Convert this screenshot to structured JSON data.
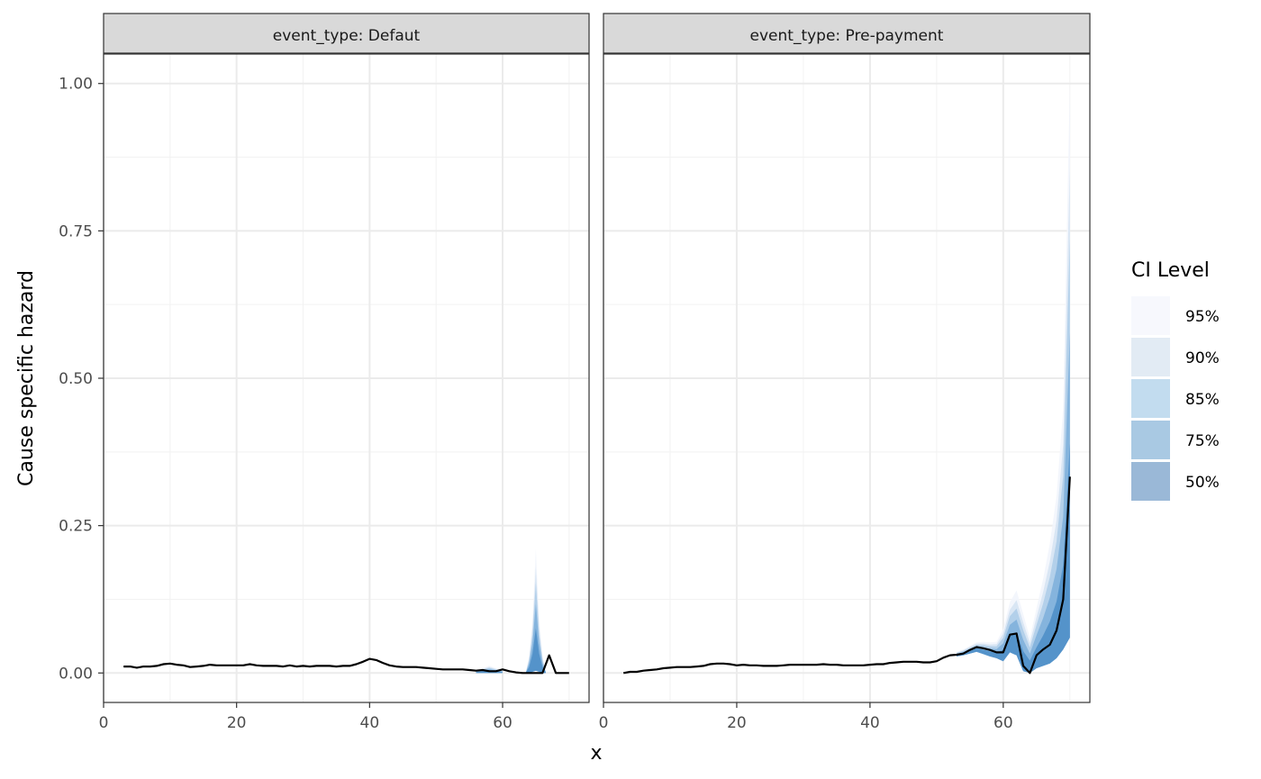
{
  "chart_data": {
    "type": "area",
    "facet_var": "event_type",
    "panels": [
      {
        "strip": "event_type: Defaut",
        "x": [
          3,
          4,
          5,
          6,
          7,
          8,
          9,
          10,
          11,
          12,
          13,
          14,
          15,
          16,
          17,
          18,
          19,
          20,
          21,
          22,
          23,
          24,
          25,
          26,
          27,
          28,
          29,
          30,
          31,
          32,
          33,
          34,
          35,
          36,
          37,
          38,
          39,
          40,
          41,
          42,
          43,
          44,
          45,
          46,
          47,
          48,
          49,
          50,
          51,
          52,
          53,
          54,
          55,
          56,
          57,
          58,
          59,
          60,
          61,
          62,
          63,
          64,
          65,
          66,
          67,
          68,
          69,
          70
        ],
        "y": [
          0.011,
          0.011,
          0.009,
          0.011,
          0.011,
          0.012,
          0.015,
          0.016,
          0.014,
          0.013,
          0.01,
          0.011,
          0.012,
          0.014,
          0.013,
          0.013,
          0.013,
          0.013,
          0.013,
          0.015,
          0.013,
          0.012,
          0.012,
          0.012,
          0.011,
          0.013,
          0.011,
          0.012,
          0.011,
          0.012,
          0.012,
          0.012,
          0.011,
          0.012,
          0.012,
          0.015,
          0.019,
          0.024,
          0.022,
          0.017,
          0.013,
          0.011,
          0.01,
          0.01,
          0.01,
          0.009,
          0.008,
          0.007,
          0.006,
          0.006,
          0.006,
          0.006,
          0.005,
          0.004,
          0.005,
          0.003,
          0.003,
          0.006,
          0.003,
          0.001,
          0.0,
          0.0,
          0.0,
          0.0,
          0.03,
          0.0,
          0.0,
          0.0
        ],
        "bands": [
          {
            "x": [
              56,
              57,
              58,
              59,
              60
            ],
            "lower": [
              0,
              0,
              0,
              0,
              0
            ],
            "upper": [
              0.004,
              0.008,
              0.012,
              0.008,
              0.004
            ]
          },
          {
            "x": [
              63.5,
              64,
              64.5,
              65,
              65.5,
              66,
              66.5
            ],
            "lower": [
              0,
              0,
              0.002,
              0.004,
              0.002,
              0,
              0
            ],
            "upper": [
              0.002,
              0.03,
              0.09,
              0.21,
              0.09,
              0.03,
              0.002
            ]
          }
        ]
      },
      {
        "strip": "event_type: Pre-payment",
        "x": [
          3,
          4,
          5,
          6,
          7,
          8,
          9,
          10,
          11,
          12,
          13,
          14,
          15,
          16,
          17,
          18,
          19,
          20,
          21,
          22,
          23,
          24,
          25,
          26,
          27,
          28,
          29,
          30,
          31,
          32,
          33,
          34,
          35,
          36,
          37,
          38,
          39,
          40,
          41,
          42,
          43,
          44,
          45,
          46,
          47,
          48,
          49,
          50,
          51,
          52,
          53,
          54,
          55,
          56,
          57,
          58,
          59,
          60,
          61,
          62,
          63,
          64,
          65,
          66,
          67,
          68,
          69,
          70
        ],
        "y": [
          0.0,
          0.002,
          0.002,
          0.004,
          0.005,
          0.006,
          0.008,
          0.009,
          0.01,
          0.01,
          0.01,
          0.011,
          0.012,
          0.015,
          0.016,
          0.016,
          0.015,
          0.013,
          0.014,
          0.013,
          0.013,
          0.012,
          0.012,
          0.012,
          0.013,
          0.014,
          0.014,
          0.014,
          0.014,
          0.014,
          0.015,
          0.014,
          0.014,
          0.013,
          0.013,
          0.013,
          0.013,
          0.014,
          0.015,
          0.015,
          0.017,
          0.018,
          0.019,
          0.019,
          0.019,
          0.018,
          0.018,
          0.02,
          0.026,
          0.03,
          0.031,
          0.033,
          0.039,
          0.044,
          0.042,
          0.039,
          0.035,
          0.035,
          0.065,
          0.067,
          0.012,
          0.0,
          0.03,
          0.04,
          0.048,
          0.072,
          0.125,
          0.333
        ],
        "bands": [
          {
            "x": [
              53,
              54,
              55,
              56,
              57,
              58,
              59,
              60,
              61,
              62,
              63,
              64,
              65,
              66,
              67,
              68,
              69,
              70
            ],
            "lower": [
              0.028,
              0.03,
              0.033,
              0.036,
              0.032,
              0.028,
              0.025,
              0.02,
              0.035,
              0.03,
              0.003,
              0.0,
              0.008,
              0.012,
              0.016,
              0.025,
              0.04,
              0.06
            ],
            "upper": [
              0.036,
              0.04,
              0.046,
              0.052,
              0.053,
              0.052,
              0.053,
              0.075,
              0.12,
              0.14,
              0.1,
              0.06,
              0.11,
              0.16,
              0.22,
              0.3,
              0.45,
              1.0
            ]
          }
        ]
      }
    ],
    "xlabel": "x",
    "ylabel": "Cause specific hazard",
    "xlim": [
      0,
      73
    ],
    "ylim": [
      -0.05,
      1.05
    ],
    "x_ticks": [
      "0",
      "20",
      "40",
      "60"
    ],
    "x_tick_values": [
      0,
      20,
      40,
      60
    ],
    "y_ticks": [
      "0.00",
      "0.25",
      "0.50",
      "0.75",
      "1.00"
    ],
    "y_tick_values": [
      0,
      0.25,
      0.5,
      0.75,
      1.0
    ],
    "grid": true,
    "legend": {
      "title": "CI Level",
      "placement": "right",
      "levels": [
        {
          "label": "95%",
          "frac": 1.0,
          "color": "#f7f8fd"
        },
        {
          "label": "90%",
          "frac": 0.85,
          "color": "#e2ebf4"
        },
        {
          "label": "85%",
          "frac": 0.72,
          "color": "#c2dcef"
        },
        {
          "label": "75%",
          "frac": 0.55,
          "color": "#a9c9e3"
        },
        {
          "label": "50%",
          "frac": 0.35,
          "color": "#9ab8d7"
        }
      ]
    },
    "band_colors": [
      "#f2f5fc",
      "#d6e4f3",
      "#aecde9",
      "#7fb0dc",
      "#4f8fc8"
    ],
    "line_color": "#000000"
  }
}
